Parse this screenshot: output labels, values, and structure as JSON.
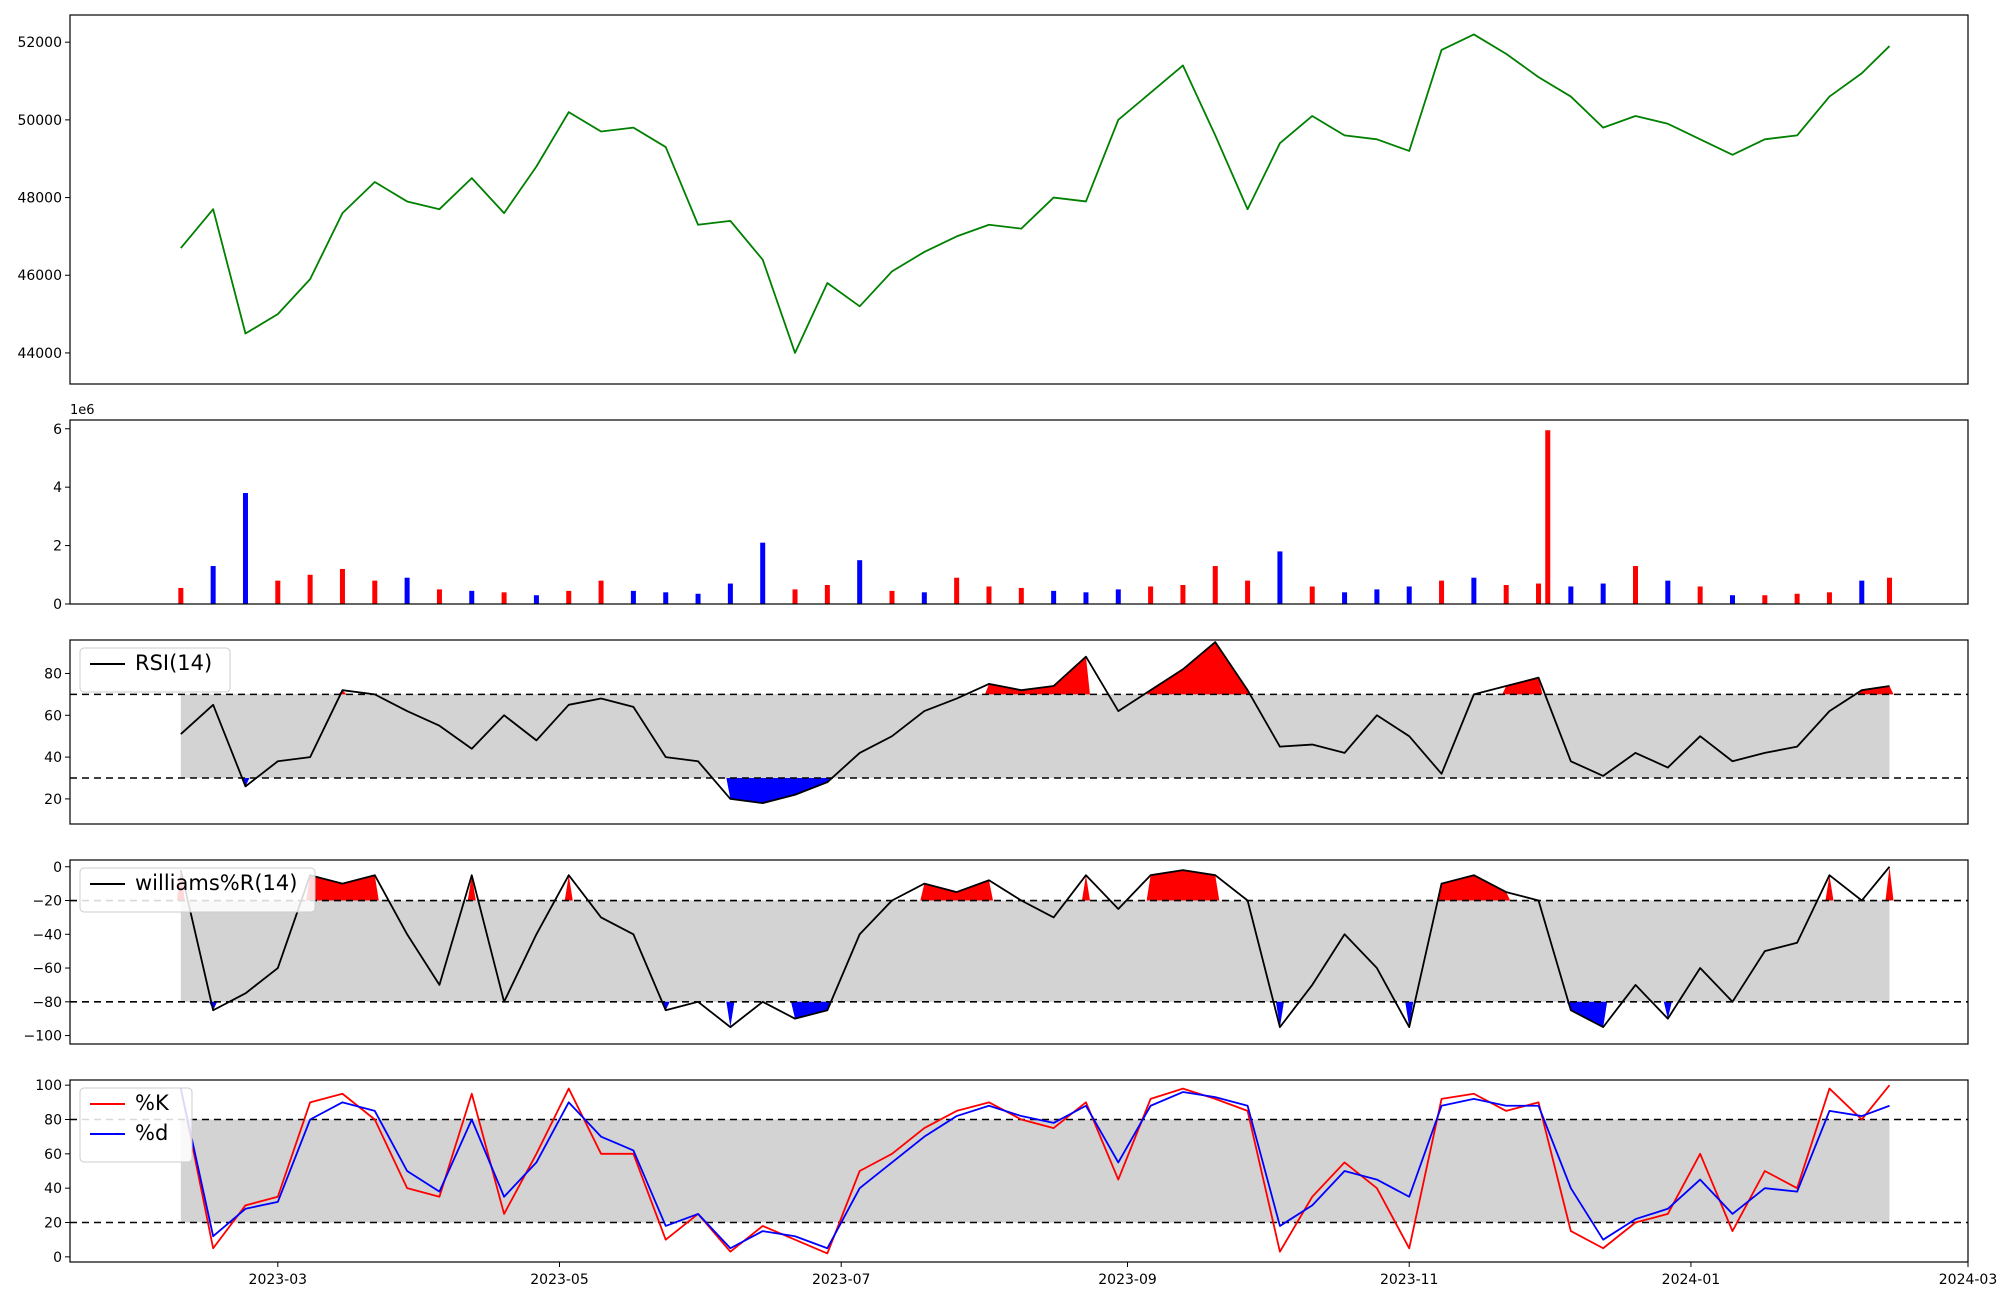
{
  "chart_data": [
    {
      "type": "line",
      "x": [
        "2023-02-08",
        "2023-02-15",
        "2023-02-22",
        "2023-03-01",
        "2023-03-08",
        "2023-03-15",
        "2023-03-22",
        "2023-03-29",
        "2023-04-05",
        "2023-04-12",
        "2023-04-19",
        "2023-04-26",
        "2023-05-03",
        "2023-05-10",
        "2023-05-17",
        "2023-05-24",
        "2023-05-31",
        "2023-06-07",
        "2023-06-14",
        "2023-06-21",
        "2023-06-28",
        "2023-07-05",
        "2023-07-12",
        "2023-07-19",
        "2023-07-26",
        "2023-08-02",
        "2023-08-09",
        "2023-08-16",
        "2023-08-23",
        "2023-08-30",
        "2023-09-06",
        "2023-09-13",
        "2023-09-20",
        "2023-09-27",
        "2023-10-04",
        "2023-10-11",
        "2023-10-18",
        "2023-10-25",
        "2023-11-01",
        "2023-11-08",
        "2023-11-15",
        "2023-11-22",
        "2023-11-29",
        "2023-12-06",
        "2023-12-13",
        "2023-12-20",
        "2023-12-27",
        "2024-01-03",
        "2024-01-10",
        "2024-01-17",
        "2024-01-24",
        "2024-01-31",
        "2024-02-07",
        "2024-02-13"
      ],
      "series": [
        {
          "color": "#008000",
          "values": [
            46700,
            47700,
            44500,
            45000,
            45900,
            47600,
            48400,
            47900,
            47700,
            48500,
            47600,
            48800,
            50200,
            49700,
            49800,
            49300,
            47300,
            47400,
            46400,
            44000,
            45800,
            45200,
            46100,
            46600,
            47000,
            47300,
            47200,
            48000,
            47900,
            50000,
            50700,
            51400,
            49600,
            47700,
            49400,
            50100,
            49600,
            49500,
            49200,
            51800,
            52200,
            51700,
            51100,
            50600,
            49800,
            50100,
            49900,
            49500,
            49100,
            49500,
            49600,
            50600,
            51200,
            51900
          ]
        }
      ],
      "ylim": [
        43200,
        52700
      ],
      "yticks": [
        44000,
        46000,
        48000,
        50000,
        52000
      ]
    },
    {
      "type": "bar",
      "x": [
        "2023-02-08",
        "2023-02-15",
        "2023-02-22",
        "2023-03-01",
        "2023-03-08",
        "2023-03-15",
        "2023-03-22",
        "2023-03-29",
        "2023-04-05",
        "2023-04-12",
        "2023-04-19",
        "2023-04-26",
        "2023-05-03",
        "2023-05-10",
        "2023-05-17",
        "2023-05-24",
        "2023-05-31",
        "2023-06-07",
        "2023-06-14",
        "2023-06-21",
        "2023-06-28",
        "2023-07-05",
        "2023-07-12",
        "2023-07-19",
        "2023-07-26",
        "2023-08-02",
        "2023-08-09",
        "2023-08-16",
        "2023-08-23",
        "2023-08-30",
        "2023-09-06",
        "2023-09-13",
        "2023-09-20",
        "2023-09-27",
        "2023-10-04",
        "2023-10-11",
        "2023-10-18",
        "2023-10-25",
        "2023-11-01",
        "2023-11-08",
        "2023-11-15",
        "2023-11-22",
        "2023-11-29",
        "2023-12-01",
        "2023-12-06",
        "2023-12-13",
        "2023-12-20",
        "2023-12-27",
        "2024-01-03",
        "2024-01-10",
        "2024-01-17",
        "2024-01-24",
        "2024-01-31",
        "2024-02-07",
        "2024-02-13"
      ],
      "values": [
        550000,
        1300000,
        3800000,
        800000,
        1000000,
        1200000,
        800000,
        900000,
        500000,
        450000,
        400000,
        300000,
        450000,
        800000,
        450000,
        400000,
        350000,
        700000,
        2100000,
        500000,
        650000,
        1500000,
        450000,
        400000,
        900000,
        600000,
        550000,
        450000,
        400000,
        500000,
        600000,
        650000,
        1300000,
        800000,
        1800000,
        600000,
        400000,
        500000,
        600000,
        800000,
        900000,
        650000,
        700000,
        5950000,
        600000,
        700000,
        1300000,
        800000,
        600000,
        300000,
        300000,
        350000,
        400000,
        800000,
        900000
      ],
      "colors": [
        "#ff0000",
        "#0000ff",
        "#0000ff",
        "#ff0000",
        "#ff0000",
        "#ff0000",
        "#ff0000",
        "#0000ff",
        "#ff0000",
        "#0000ff",
        "#ff0000",
        "#0000ff",
        "#ff0000",
        "#ff0000",
        "#0000ff",
        "#0000ff",
        "#0000ff",
        "#0000ff",
        "#0000ff",
        "#ff0000",
        "#ff0000",
        "#0000ff",
        "#ff0000",
        "#0000ff",
        "#ff0000",
        "#ff0000",
        "#ff0000",
        "#0000ff",
        "#0000ff",
        "#0000ff",
        "#ff0000",
        "#ff0000",
        "#ff0000",
        "#ff0000",
        "#0000ff",
        "#ff0000",
        "#0000ff",
        "#0000ff",
        "#0000ff",
        "#ff0000",
        "#0000ff",
        "#ff0000",
        "#ff0000",
        "#ff0000",
        "#0000ff",
        "#0000ff",
        "#ff0000",
        "#0000ff",
        "#ff0000",
        "#0000ff",
        "#ff0000",
        "#ff0000",
        "#ff0000",
        "#0000ff",
        "#ff0000"
      ],
      "offset_label": "1e6",
      "ylim": [
        0,
        6300000
      ],
      "yticks": [
        0,
        2000000,
        4000000,
        6000000
      ],
      "ytick_labels": [
        "0",
        "2",
        "4",
        "6"
      ]
    },
    {
      "type": "line",
      "x": [
        "2023-02-08",
        "2023-02-15",
        "2023-02-22",
        "2023-03-01",
        "2023-03-08",
        "2023-03-15",
        "2023-03-22",
        "2023-03-29",
        "2023-04-05",
        "2023-04-12",
        "2023-04-19",
        "2023-04-26",
        "2023-05-03",
        "2023-05-10",
        "2023-05-17",
        "2023-05-24",
        "2023-05-31",
        "2023-06-07",
        "2023-06-14",
        "2023-06-21",
        "2023-06-28",
        "2023-07-05",
        "2023-07-12",
        "2023-07-19",
        "2023-07-26",
        "2023-08-02",
        "2023-08-09",
        "2023-08-16",
        "2023-08-23",
        "2023-08-30",
        "2023-09-06",
        "2023-09-13",
        "2023-09-20",
        "2023-09-27",
        "2023-10-04",
        "2023-10-11",
        "2023-10-18",
        "2023-10-25",
        "2023-11-01",
        "2023-11-08",
        "2023-11-15",
        "2023-11-22",
        "2023-11-29",
        "2023-12-06",
        "2023-12-13",
        "2023-12-20",
        "2023-12-27",
        "2024-01-03",
        "2024-01-10",
        "2024-01-17",
        "2024-01-24",
        "2024-01-31",
        "2024-02-07",
        "2024-02-13"
      ],
      "series": [
        {
          "name": "RSI(14)",
          "color": "#000000",
          "values": [
            51,
            65,
            26,
            38,
            40,
            72,
            70,
            62,
            55,
            44,
            60,
            48,
            65,
            68,
            64,
            40,
            38,
            20,
            18,
            22,
            28,
            42,
            50,
            62,
            68,
            75,
            72,
            74,
            88,
            62,
            72,
            82,
            95,
            72,
            45,
            46,
            42,
            60,
            50,
            32,
            70,
            74,
            78,
            38,
            31,
            42,
            35,
            50,
            38,
            42,
            45,
            62,
            72,
            74
          ]
        }
      ],
      "legend": "upper left",
      "ylim": [
        8,
        96
      ],
      "yticks": [
        20,
        40,
        60,
        80
      ],
      "hlines": [
        70,
        30
      ],
      "fill_colors": {
        "over": "#ff0000",
        "under": "#0000ff",
        "band": "#d3d3d3"
      }
    },
    {
      "type": "line",
      "x": [
        "2023-02-08",
        "2023-02-15",
        "2023-02-22",
        "2023-03-01",
        "2023-03-08",
        "2023-03-15",
        "2023-03-22",
        "2023-03-29",
        "2023-04-05",
        "2023-04-12",
        "2023-04-19",
        "2023-04-26",
        "2023-05-03",
        "2023-05-10",
        "2023-05-17",
        "2023-05-24",
        "2023-05-31",
        "2023-06-07",
        "2023-06-14",
        "2023-06-21",
        "2023-06-28",
        "2023-07-05",
        "2023-07-12",
        "2023-07-19",
        "2023-07-26",
        "2023-08-02",
        "2023-08-09",
        "2023-08-16",
        "2023-08-23",
        "2023-08-30",
        "2023-09-06",
        "2023-09-13",
        "2023-09-20",
        "2023-09-27",
        "2023-10-04",
        "2023-10-11",
        "2023-10-18",
        "2023-10-25",
        "2023-11-01",
        "2023-11-08",
        "2023-11-15",
        "2023-11-22",
        "2023-11-29",
        "2023-12-06",
        "2023-12-13",
        "2023-12-20",
        "2023-12-27",
        "2024-01-03",
        "2024-01-10",
        "2024-01-17",
        "2024-01-24",
        "2024-01-31",
        "2024-02-07",
        "2024-02-13"
      ],
      "series": [
        {
          "name": "williams%R(14)",
          "color": "#000000",
          "values": [
            -2,
            -85,
            -75,
            -60,
            -5,
            -10,
            -5,
            -40,
            -70,
            -5,
            -80,
            -40,
            -5,
            -30,
            -40,
            -85,
            -80,
            -95,
            -80,
            -90,
            -85,
            -40,
            -20,
            -10,
            -15,
            -8,
            -20,
            -30,
            -5,
            -25,
            -5,
            -2,
            -5,
            -20,
            -95,
            -70,
            -40,
            -60,
            -95,
            -10,
            -5,
            -15,
            -20,
            -85,
            -95,
            -70,
            -90,
            -60,
            -80,
            -50,
            -45,
            -5,
            -20,
            0
          ]
        }
      ],
      "legend": "upper left",
      "ylim": [
        -105,
        4
      ],
      "yticks": [
        -100,
        -80,
        -60,
        -40,
        -20,
        0
      ],
      "hlines": [
        -20,
        -80
      ],
      "fill_colors": {
        "over": "#ff0000",
        "under": "#0000ff",
        "band": "#d3d3d3"
      }
    },
    {
      "type": "line",
      "x": [
        "2023-02-08",
        "2023-02-15",
        "2023-02-22",
        "2023-03-01",
        "2023-03-08",
        "2023-03-15",
        "2023-03-22",
        "2023-03-29",
        "2023-04-05",
        "2023-04-12",
        "2023-04-19",
        "2023-04-26",
        "2023-05-03",
        "2023-05-10",
        "2023-05-17",
        "2023-05-24",
        "2023-05-31",
        "2023-06-07",
        "2023-06-14",
        "2023-06-21",
        "2023-06-28",
        "2023-07-05",
        "2023-07-12",
        "2023-07-19",
        "2023-07-26",
        "2023-08-02",
        "2023-08-09",
        "2023-08-16",
        "2023-08-23",
        "2023-08-30",
        "2023-09-06",
        "2023-09-13",
        "2023-09-20",
        "2023-09-27",
        "2023-10-04",
        "2023-10-11",
        "2023-10-18",
        "2023-10-25",
        "2023-11-01",
        "2023-11-08",
        "2023-11-15",
        "2023-11-22",
        "2023-11-29",
        "2023-12-06",
        "2023-12-13",
        "2023-12-20",
        "2023-12-27",
        "2024-01-03",
        "2024-01-10",
        "2024-01-17",
        "2024-01-24",
        "2024-01-31",
        "2024-02-07",
        "2024-02-13"
      ],
      "series": [
        {
          "name": "%K",
          "color": "#ff0000",
          "values": [
            98,
            5,
            30,
            35,
            90,
            95,
            80,
            40,
            35,
            95,
            25,
            60,
            98,
            60,
            60,
            10,
            25,
            3,
            18,
            10,
            2,
            50,
            60,
            75,
            85,
            90,
            80,
            75,
            90,
            45,
            92,
            98,
            92,
            85,
            3,
            35,
            55,
            40,
            5,
            92,
            95,
            85,
            90,
            15,
            5,
            20,
            25,
            60,
            15,
            50,
            40,
            98,
            80,
            100
          ]
        },
        {
          "name": "%d",
          "color": "#0000ff",
          "values": [
            98,
            12,
            28,
            32,
            80,
            90,
            85,
            50,
            38,
            80,
            35,
            55,
            90,
            70,
            62,
            18,
            25,
            5,
            15,
            12,
            5,
            40,
            55,
            70,
            82,
            88,
            82,
            78,
            88,
            55,
            88,
            96,
            93,
            88,
            18,
            30,
            50,
            45,
            35,
            88,
            92,
            88,
            88,
            40,
            10,
            22,
            28,
            45,
            25,
            40,
            38,
            85,
            82,
            88
          ]
        }
      ],
      "legend": "upper left",
      "ylim": [
        -3,
        103
      ],
      "yticks": [
        0,
        20,
        40,
        60,
        80,
        100
      ],
      "hlines": [
        80,
        20
      ],
      "fill_colors": {
        "band": "#d3d3d3"
      }
    }
  ],
  "x_axis": {
    "range": [
      "2023-01-15",
      "2024-03-01"
    ],
    "ticks": [
      "2023-03-01",
      "2023-05-01",
      "2023-07-01",
      "2023-09-01",
      "2023-11-01",
      "2024-01-01",
      "2024-03-01"
    ],
    "tick_labels": [
      "2023-03",
      "2023-05",
      "2023-07",
      "2023-09",
      "2023-11",
      "2024-01",
      "2024-03"
    ]
  }
}
